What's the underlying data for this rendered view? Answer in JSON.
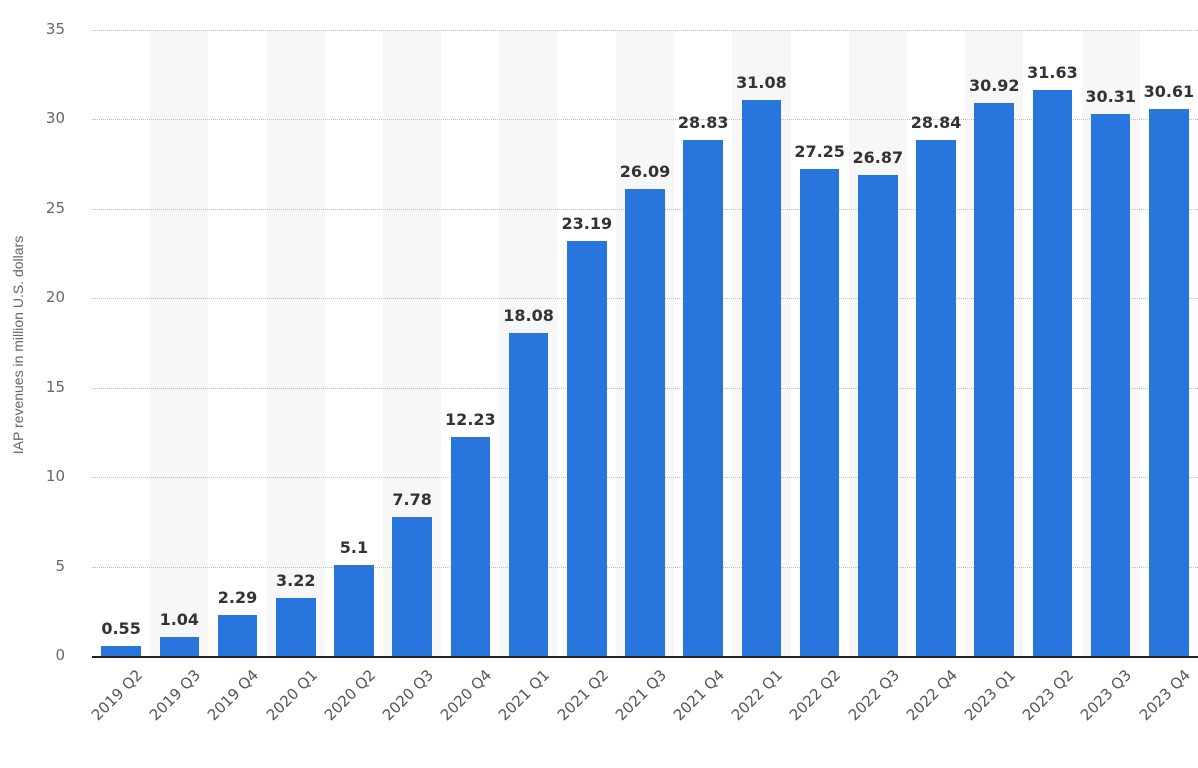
{
  "chart_data": {
    "type": "bar",
    "title": "",
    "xlabel": "",
    "ylabel": "IAP revenues in million U.S. dollars",
    "ylim": [
      0,
      35
    ],
    "yticks": [
      0,
      5,
      10,
      15,
      20,
      25,
      30,
      35
    ],
    "grid": true,
    "legend": null,
    "bar_color": "#2875dd",
    "categories": [
      "2019 Q2",
      "2019 Q3",
      "2019 Q4",
      "2020 Q1",
      "2020 Q2",
      "2020 Q3",
      "2020 Q4",
      "2021 Q1",
      "2021 Q2",
      "2021 Q3",
      "2021 Q4",
      "2022 Q1",
      "2022 Q2",
      "2022 Q3",
      "2022 Q4",
      "2023 Q1",
      "2023 Q2",
      "2023 Q3",
      "2023 Q4"
    ],
    "values": [
      0.55,
      1.04,
      2.29,
      3.22,
      5.1,
      7.78,
      12.23,
      18.08,
      23.19,
      26.09,
      28.83,
      31.08,
      27.25,
      26.87,
      28.84,
      30.92,
      31.63,
      30.31,
      30.61
    ],
    "value_labels": [
      "0.55",
      "1.04",
      "2.29",
      "3.22",
      "5.1",
      "7.78",
      "12.23",
      "18.08",
      "23.19",
      "26.09",
      "28.83",
      "31.08",
      "27.25",
      "26.87",
      "28.84",
      "30.92",
      "31.63",
      "30.31",
      "30.61"
    ]
  }
}
